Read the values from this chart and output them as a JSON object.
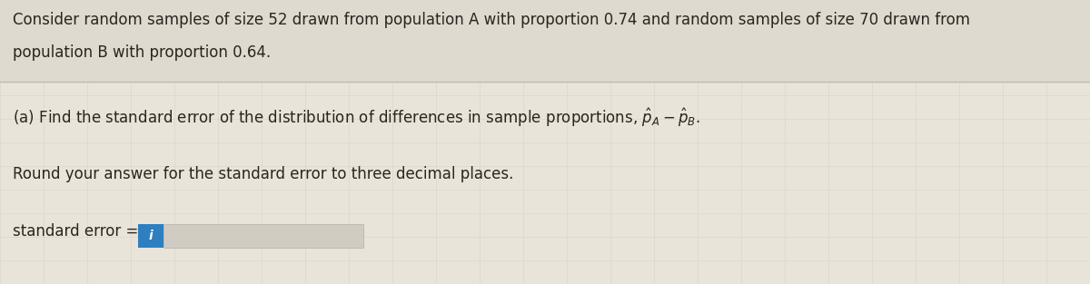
{
  "title_line1": "Consider random samples of size 52 drawn from population A with proportion 0.74 and random samples of size 70 drawn from",
  "title_line2": "population B with proportion 0.64.",
  "part_a_text": "(a) Find the standard error of the distribution of differences in sample proportions, $\\hat{p}_A - \\hat{p}_B$.",
  "round_text": "Round your answer for the standard error to three decimal places.",
  "label_text": "standard error =",
  "bg_color": "#e8e4da",
  "header_bg_color": "#dedad0",
  "text_color": "#2a2520",
  "box_color": "#2e7fc0",
  "box_text": "i",
  "input_bg_color": "#d0ccc4",
  "divider_color": "#c0bbb0",
  "grid_color": "#ccc8be",
  "font_size_main": 12.0
}
